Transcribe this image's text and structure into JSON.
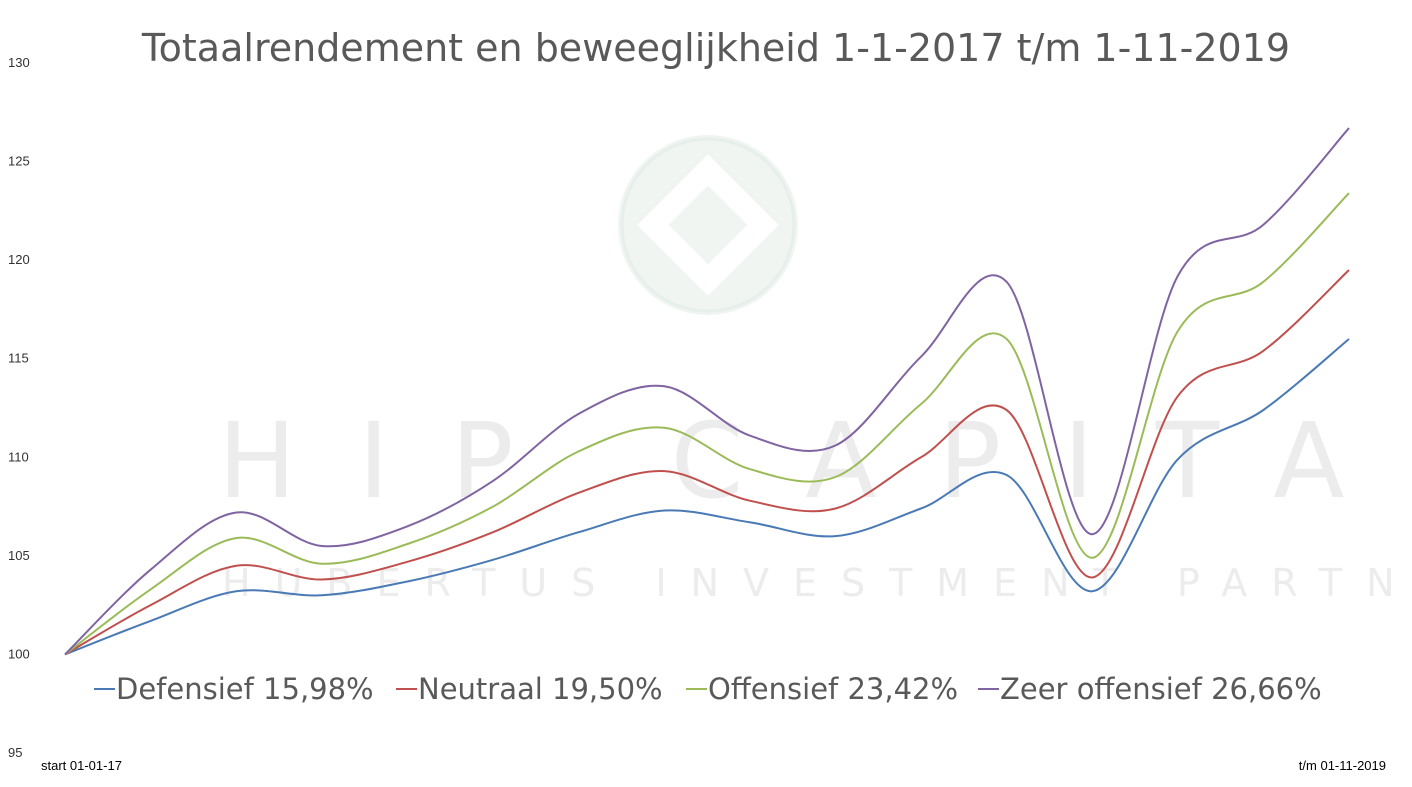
{
  "watermark": {
    "brand": "HIP CAPITAL",
    "tagline": "HUBERTUS INVESTMENT PARTNERS",
    "icon": "diamond-logo-icon"
  },
  "chart_data": {
    "type": "line",
    "title": "Totaalrendement en beweeglijkheid 1-1-2017 t/m 1-11-2019",
    "xlabel": "",
    "ylabel": "",
    "ylim": [
      95,
      130
    ],
    "yticks": [
      130,
      125,
      120,
      115,
      110,
      105,
      100,
      95
    ],
    "x_tick_labels": [
      "start 01-01-17",
      "t/m 01-11-2019"
    ],
    "grid": false,
    "legend_position": "bottom",
    "x": [
      0,
      1,
      2,
      3,
      4,
      5,
      6,
      7,
      8,
      9,
      10,
      11,
      12,
      13,
      14,
      15
    ],
    "series": [
      {
        "name": "Defensief 15,98%",
        "color": "#4a7ab5",
        "values": [
          100,
          101.7,
          103.2,
          103.0,
          103.7,
          104.8,
          106.2,
          107.3,
          106.7,
          106.0,
          107.4,
          109.1,
          103.2,
          109.9,
          112.4,
          116.0
        ]
      },
      {
        "name": "Neutraal 19,50%",
        "color": "#c0504d",
        "values": [
          100,
          102.5,
          104.5,
          103.8,
          104.7,
          106.2,
          108.2,
          109.3,
          107.8,
          107.4,
          110.0,
          112.4,
          103.9,
          113.1,
          115.4,
          119.5
        ]
      },
      {
        "name": "Offensief 23,42%",
        "color": "#9bbb59",
        "values": [
          100,
          103.3,
          105.9,
          104.6,
          105.6,
          107.5,
          110.3,
          111.5,
          109.4,
          109.0,
          112.7,
          116.0,
          104.9,
          116.4,
          118.9,
          123.4
        ]
      },
      {
        "name": "Zeer offensief 26,66%",
        "color": "#8064a2",
        "values": [
          100,
          104.3,
          107.2,
          105.5,
          106.5,
          108.8,
          112.2,
          113.6,
          111.1,
          110.6,
          115.1,
          118.9,
          106.1,
          119.2,
          121.8,
          126.7
        ]
      }
    ]
  }
}
